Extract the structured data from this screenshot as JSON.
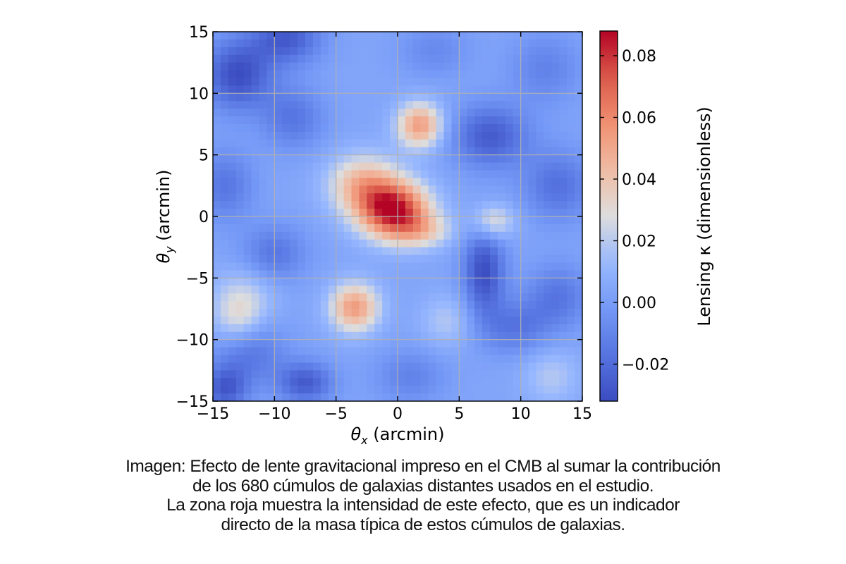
{
  "chart_data": {
    "type": "heatmap",
    "xlabel": "θx (arcmin)",
    "ylabel": "θy (arcmin)",
    "xlim": [
      -15,
      15
    ],
    "ylim": [
      -15,
      15
    ],
    "x_ticks": [
      "−15",
      "−10",
      "−5",
      "0",
      "5",
      "10",
      "15"
    ],
    "y_ticks": [
      "15",
      "10",
      "5",
      "0",
      "−5",
      "−10",
      "−15"
    ],
    "x_tick_values": [
      -15,
      -10,
      -5,
      0,
      5,
      10,
      15
    ],
    "y_tick_values": [
      15,
      10,
      5,
      0,
      -5,
      -10,
      -15
    ],
    "grid": true,
    "colormap": "coolwarm",
    "colorbar": {
      "label": "Lensing κ (dimensionless)",
      "range": [
        -0.032,
        0.088
      ],
      "ticks": [
        "0.08",
        "0.06",
        "0.04",
        "0.02",
        "0.00",
        "−0.02"
      ],
      "tick_values": [
        0.08,
        0.06,
        0.04,
        0.02,
        0.0,
        -0.02
      ]
    },
    "background_level": 0.004,
    "features": [
      {
        "x": -0.3,
        "y": 0.5,
        "kappa": 0.08,
        "sx": 2.0,
        "sy": 1.6
      },
      {
        "x": -2.8,
        "y": 2.6,
        "kappa": 0.04,
        "sx": 2.0,
        "sy": 1.7
      },
      {
        "x": 2.0,
        "y": -1.2,
        "kappa": 0.025,
        "sx": 1.8,
        "sy": 1.0
      },
      {
        "x": 1.8,
        "y": 7.4,
        "kappa": 0.05,
        "sx": 1.3,
        "sy": 1.3
      },
      {
        "x": -3.5,
        "y": -7.4,
        "kappa": 0.05,
        "sx": 1.4,
        "sy": 1.4
      },
      {
        "x": 7.8,
        "y": -0.4,
        "kappa": 0.028,
        "sx": 1.2,
        "sy": 1.0
      },
      {
        "x": -13.0,
        "y": 11.5,
        "kappa": -0.035,
        "sx": 2.0,
        "sy": 2.0
      },
      {
        "x": -9.0,
        "y": 14.5,
        "kappa": -0.03,
        "sx": 2.0,
        "sy": 1.5
      },
      {
        "x": -14.0,
        "y": 2.5,
        "kappa": -0.02,
        "sx": 1.6,
        "sy": 2.0
      },
      {
        "x": -8.5,
        "y": 8.0,
        "kappa": -0.02,
        "sx": 1.8,
        "sy": 1.8
      },
      {
        "x": 7.5,
        "y": 6.5,
        "kappa": -0.03,
        "sx": 2.2,
        "sy": 1.8
      },
      {
        "x": 13.0,
        "y": 2.5,
        "kappa": -0.022,
        "sx": 2.0,
        "sy": 2.0
      },
      {
        "x": 12.0,
        "y": 12.0,
        "kappa": -0.015,
        "sx": 2.0,
        "sy": 2.0
      },
      {
        "x": 3.0,
        "y": 13.5,
        "kappa": -0.012,
        "sx": 2.0,
        "sy": 1.5
      },
      {
        "x": -10.0,
        "y": -3.0,
        "kappa": -0.02,
        "sx": 1.8,
        "sy": 1.6
      },
      {
        "x": -12.0,
        "y": -11.0,
        "kappa": -0.02,
        "sx": 2.0,
        "sy": 1.8
      },
      {
        "x": -14.0,
        "y": -14.0,
        "kappa": -0.03,
        "sx": 1.3,
        "sy": 1.3
      },
      {
        "x": -7.5,
        "y": -13.5,
        "kappa": -0.03,
        "sx": 1.6,
        "sy": 1.2
      },
      {
        "x": 7.0,
        "y": -4.5,
        "kappa": -0.035,
        "sx": 1.2,
        "sy": 2.5
      },
      {
        "x": 9.5,
        "y": -9.0,
        "kappa": -0.02,
        "sx": 2.0,
        "sy": 1.5
      },
      {
        "x": 13.0,
        "y": -6.5,
        "kappa": -0.02,
        "sx": 1.8,
        "sy": 1.8
      },
      {
        "x": 1.0,
        "y": -13.0,
        "kappa": -0.015,
        "sx": 2.0,
        "sy": 1.5
      },
      {
        "x": -12.5,
        "y": -6.5,
        "kappa": 0.018,
        "sx": 1.8,
        "sy": 1.6
      },
      {
        "x": 4.0,
        "y": -8.5,
        "kappa": 0.015,
        "sx": 1.5,
        "sy": 1.5
      },
      {
        "x": 12.5,
        "y": -13.0,
        "kappa": 0.015,
        "sx": 1.6,
        "sy": 1.6
      },
      {
        "x": -13.0,
        "y": -8.5,
        "kappa": 0.02,
        "sx": 1.4,
        "sy": 1.4
      }
    ]
  },
  "caption": {
    "line1": "Imagen: Efecto de lente gravitacional impreso en el CMB al sumar la contribución",
    "line2": "de los 680 cúmulos de galaxias distantes usados en el estudio.",
    "line3": "La zona roja muestra la intensidad de este efecto, que es un indicador",
    "line4": "directo de la masa típica de estos cúmulos de galaxias."
  }
}
